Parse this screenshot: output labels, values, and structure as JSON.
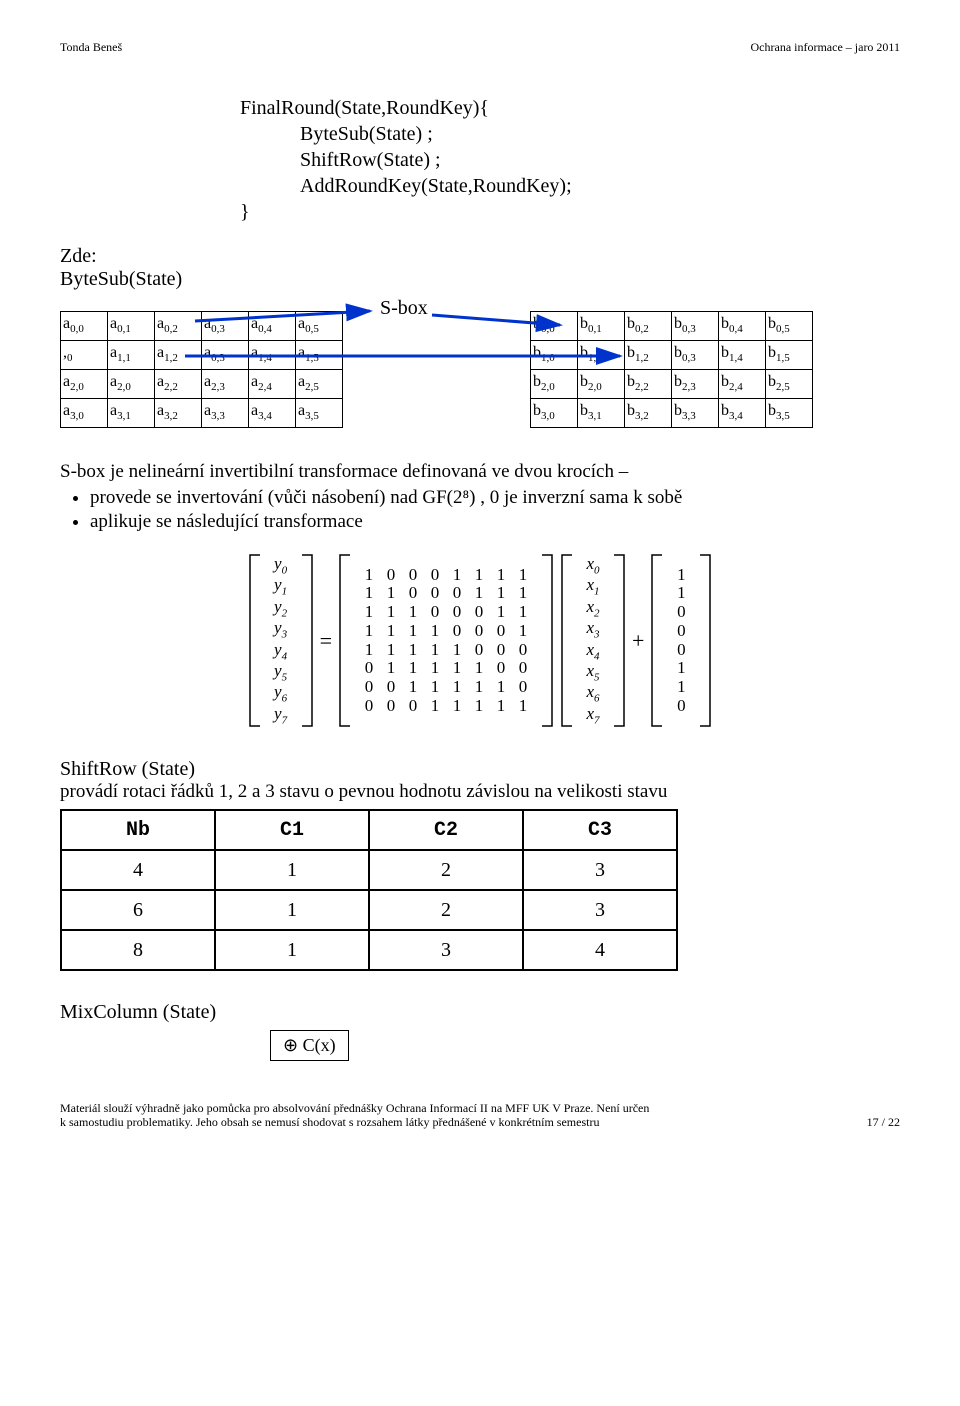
{
  "header": {
    "left": "Tonda Beneš",
    "right": "Ochrana informace – jaro 2011"
  },
  "code": {
    "l1": "FinalRound(State,RoundKey){",
    "l2": "ByteSub(State) ;",
    "l3": "ShiftRow(State) ;",
    "l4": "AddRoundKey(State,RoundKey);",
    "l5": "}"
  },
  "zde": {
    "title": "Zde:",
    "sub": "ByteSub(State)"
  },
  "sbox_label": "S-box",
  "table_a": [
    [
      "a0,0",
      "a0,1",
      "a0,2",
      "a0,3",
      "a0,4",
      "a0,5"
    ],
    [
      ",0",
      "a1,1",
      "a1,2",
      "a0,3",
      "a1,4",
      "a1,5"
    ],
    [
      "a2,0",
      "a2,0",
      "a2,2",
      "a2,3",
      "a2,4",
      "a2,5"
    ],
    [
      "a3,0",
      "a3,1",
      "a3,2",
      "a3,3",
      "a3,4",
      "a3,5"
    ]
  ],
  "table_b": [
    [
      "b0,0",
      "b0,1",
      "b0,2",
      "b0,3",
      "b0,4",
      "b0,5"
    ],
    [
      "b1,0",
      "b1,1",
      "b1,2",
      "b0,3",
      "b1,4",
      "b1,5"
    ],
    [
      "b2,0",
      "b2,0",
      "b2,2",
      "b2,3",
      "b2,4",
      "b2,5"
    ],
    [
      "b3,0",
      "b3,1",
      "b3,2",
      "b3,3",
      "b3,4",
      "b3,5"
    ]
  ],
  "sbox_text": "S-box je nelineární invertibilní transformace definovaná ve dvou krocích –",
  "bullets": {
    "b1": "provede se invertování (vůči násobení) nad GF(2⁸) , 0 je inverzní sama k sobě",
    "b2": "aplikuje se následující transformace"
  },
  "matrix": {
    "y": [
      "y0",
      "y1",
      "y2",
      "y3",
      "y4",
      "y5",
      "y6",
      "y7"
    ],
    "M": [
      [
        1,
        0,
        0,
        0,
        1,
        1,
        1,
        1
      ],
      [
        1,
        1,
        0,
        0,
        0,
        1,
        1,
        1
      ],
      [
        1,
        1,
        1,
        0,
        0,
        0,
        1,
        1
      ],
      [
        1,
        1,
        1,
        1,
        0,
        0,
        0,
        1
      ],
      [
        1,
        1,
        1,
        1,
        1,
        0,
        0,
        0
      ],
      [
        0,
        1,
        1,
        1,
        1,
        1,
        0,
        0
      ],
      [
        0,
        0,
        1,
        1,
        1,
        1,
        1,
        0
      ],
      [
        0,
        0,
        0,
        1,
        1,
        1,
        1,
        1
      ]
    ],
    "x": [
      "x0",
      "x1",
      "x2",
      "x3",
      "x4",
      "x5",
      "x6",
      "x7"
    ],
    "c": [
      1,
      1,
      0,
      0,
      0,
      1,
      1,
      0
    ],
    "eq": "=",
    "plus": "+"
  },
  "shiftrow": {
    "title": "ShiftRow (State)",
    "desc": "provádí rotaci řádků 1, 2 a 3 stavu o pevnou hodnotu závislou na velikosti stavu",
    "headers": [
      "Nb",
      "C1",
      "C2",
      "C3"
    ],
    "rows": [
      [
        "4",
        "1",
        "2",
        "3"
      ],
      [
        "6",
        "1",
        "2",
        "3"
      ],
      [
        "8",
        "1",
        "3",
        "4"
      ]
    ]
  },
  "mixcol": {
    "title": "MixColumn (State)",
    "op": "⊕ C(x)"
  },
  "footer": {
    "left1": "Materiál slouží výhradně jako pomůcka pro absolvování přednášky Ochrana Informací II na MFF UK V Praze. Není určen",
    "left2": "k samostudiu problematiky. Jeho obsah se nemusí shodovat s rozsahem látky přednášené v konkrétním semestru",
    "right": "17 / 22"
  },
  "styling": {
    "page_bg": "#ffffff",
    "arrow_color": "#0033cc",
    "text_color": "#000000",
    "table_border_color": "#000000"
  }
}
